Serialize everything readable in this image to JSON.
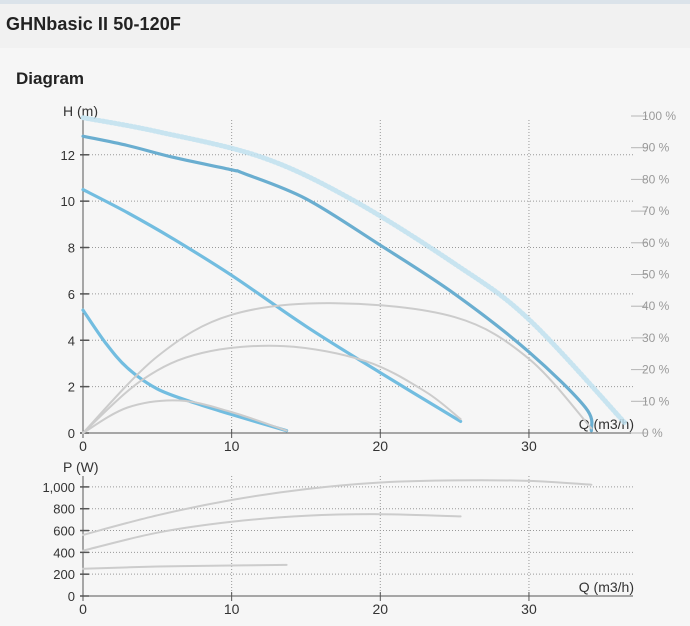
{
  "product": {
    "title": "GHNbasic II 50-120F"
  },
  "section": {
    "title": "Diagram"
  },
  "chart_data": [
    {
      "type": "line",
      "title": "",
      "xlabel": "Q (m3/h)",
      "ylabel": "H (m)",
      "y2label": "",
      "xlim": [
        0,
        37
      ],
      "ylim": [
        0,
        13.5
      ],
      "y2lim": [
        0,
        100
      ],
      "x_ticks": [
        0,
        10,
        20,
        30
      ],
      "y_ticks": [
        0,
        2,
        4,
        6,
        8,
        10,
        12
      ],
      "y2_ticks": [
        "0 %",
        "10 %",
        "20 %",
        "30 %",
        "40 %",
        "50 %",
        "60 %",
        "70 %",
        "80 %",
        "90 %",
        "100 %"
      ],
      "grid": true,
      "series": [
        {
          "role": "pump-curve-max",
          "color": "#6aaed0",
          "x": [
            0,
            3,
            6,
            10,
            10.8,
            15,
            20,
            25,
            30,
            33.8,
            34.2
          ],
          "y": [
            12.8,
            12.4,
            11.9,
            11.35,
            11.2,
            10.1,
            8.1,
            6.0,
            3.5,
            1.1,
            0.1
          ]
        },
        {
          "role": "pump-curve-mid",
          "color": "#72bde0",
          "x": [
            0,
            3,
            6,
            10,
            15,
            20,
            25.4
          ],
          "y": [
            10.5,
            9.5,
            8.4,
            6.8,
            4.6,
            2.6,
            0.5
          ]
        },
        {
          "role": "pump-curve-min",
          "color": "#72bde0",
          "x": [
            0,
            1.5,
            3,
            5,
            7.5,
            10,
            13.7
          ],
          "y": [
            5.3,
            3.9,
            2.8,
            1.9,
            1.3,
            0.8,
            0.1
          ]
        },
        {
          "role": "efficiency-max",
          "color": "#cccccc",
          "x": [
            0,
            5,
            10,
            17,
            25,
            30,
            34.2
          ],
          "y": [
            0,
            3.3,
            5.1,
            5.6,
            5.0,
            3.2,
            0.2
          ]
        },
        {
          "role": "efficiency-mid",
          "color": "#cccccc",
          "x": [
            0,
            4,
            8,
            13.5,
            19,
            23,
            25.4
          ],
          "y": [
            0,
            2.3,
            3.45,
            3.75,
            3.1,
            1.8,
            0.6
          ]
        },
        {
          "role": "efficiency-min",
          "color": "#cccccc",
          "x": [
            0,
            3,
            6.5,
            10,
            13.7
          ],
          "y": [
            0,
            1.1,
            1.4,
            0.9,
            0.1
          ]
        },
        {
          "role": "max-envelope",
          "color": "#c8e4f2",
          "x": [
            0,
            5,
            12,
            18,
            25,
            30,
            36.5
          ],
          "y": [
            13.6,
            13.0,
            11.9,
            10.1,
            7.3,
            4.9,
            0.4
          ]
        }
      ]
    },
    {
      "type": "line",
      "title": "",
      "xlabel": "Q (m3/h)",
      "ylabel": "P (W)",
      "xlim": [
        0,
        37
      ],
      "ylim": [
        0,
        1100
      ],
      "x_ticks": [
        0,
        10,
        20,
        30
      ],
      "y_ticks": [
        0,
        200,
        400,
        600,
        800,
        "1,000"
      ],
      "grid": true,
      "series": [
        {
          "role": "power-max",
          "color": "#cccccc",
          "x": [
            0,
            5,
            10,
            15,
            20,
            25,
            30,
            34.2
          ],
          "y": [
            560,
            740,
            880,
            980,
            1040,
            1060,
            1055,
            1020
          ]
        },
        {
          "role": "power-mid",
          "color": "#cccccc",
          "x": [
            0,
            5,
            10,
            15,
            20,
            25.4
          ],
          "y": [
            415,
            580,
            680,
            735,
            750,
            730
          ]
        },
        {
          "role": "power-min",
          "color": "#cccccc",
          "x": [
            0,
            5,
            10,
            13.7
          ],
          "y": [
            250,
            270,
            280,
            285
          ]
        }
      ]
    }
  ],
  "style": {
    "grid_color": "#999999",
    "axis_color": "#555555",
    "label_color": "#333333",
    "y2_label_color": "#9a9a9a",
    "envelope_dot_color": "#bfe0ef"
  }
}
